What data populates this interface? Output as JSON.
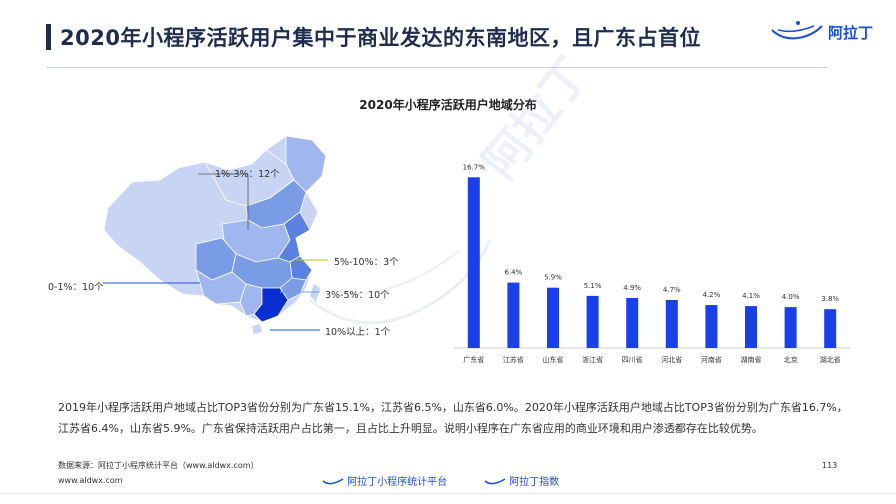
{
  "header": {
    "title": "2020年小程序活跃用户集中于商业发达的东南地区，且广东占首位",
    "logo_text": "阿拉丁"
  },
  "watermark": "阿拉丁",
  "colors": {
    "accent": "#1b4fd8",
    "bar": "#1a40e8",
    "title": "#1f2c4d"
  },
  "map": {
    "legend": [
      {
        "label": "1%-3%：12个",
        "color": "#7a9ce6"
      },
      {
        "label": "5%-10%：3个",
        "color": "#5b82e0"
      },
      {
        "label": "0-1%：10个",
        "color": "#c7d4f4"
      },
      {
        "label": "3%-5%：10个",
        "color": "#9fb7ee"
      },
      {
        "label": "10%以上：1个",
        "color": "#0a2fd0"
      }
    ]
  },
  "chart_data": {
    "type": "bar",
    "title": "2020年小程序活跃用户地域分布",
    "categories": [
      "广东省",
      "江苏省",
      "山东省",
      "浙江省",
      "四川省",
      "河北省",
      "河南省",
      "湖南省",
      "北京",
      "湖北省"
    ],
    "values": [
      16.7,
      6.4,
      5.9,
      5.1,
      4.9,
      4.7,
      4.2,
      4.1,
      4.0,
      3.8
    ],
    "value_labels": [
      "16.7%",
      "6.4%",
      "5.9%",
      "5.1%",
      "4.9%",
      "4.7%",
      "4.2%",
      "4.1%",
      "4.0%",
      "3.8%"
    ],
    "ylim": [
      0,
      18
    ],
    "xlabel": "",
    "ylabel": "",
    "grid": false
  },
  "summary": {
    "text": "2019年小程序活跃用户地域占比TOP3省份分别为广东省15.1%，江苏省6.5%，山东省6.0%。2020年小程序活跃用户地域占比TOP3省份分别为广东省16.7%，江苏省6.4%，山东省5.9%。广东省保持活跃用户占比第一，且占比上升明显。说明小程序在广东省应用的商业环境和用户渗透都存在比较优势。"
  },
  "footer": {
    "source": "数据来源：阿拉丁小程序统计平台（www.aldwx.com）",
    "site": "www.aldwx.com",
    "page_number": "113",
    "brand1": "阿拉丁小程序统计平台",
    "brand2": "阿拉丁指数"
  }
}
